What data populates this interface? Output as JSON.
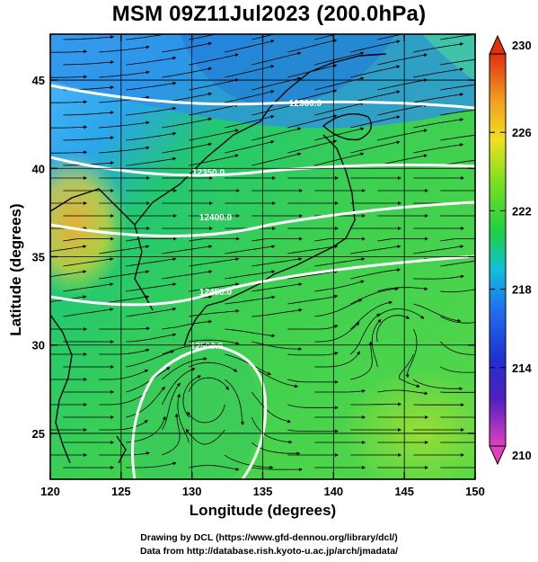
{
  "title": "MSM 09Z11Jul2023 (200.0hPa)",
  "chart_data": {
    "type": "heatmap",
    "title": "MSM 09Z11Jul2023 (200.0hPa)",
    "xlabel": "Longitude (degrees)",
    "ylabel": "Latitude  (degrees)",
    "xlim": [
      120,
      150
    ],
    "ylim": [
      22.4,
      47.6
    ],
    "xticks": [
      "120",
      "125",
      "130",
      "135",
      "140",
      "145",
      "150"
    ],
    "yticks": [
      "25",
      "30",
      "35",
      "40",
      "45"
    ],
    "xtick_values": [
      120,
      125,
      130,
      135,
      140,
      145,
      150
    ],
    "ytick_values": [
      25,
      30,
      35,
      40,
      45
    ],
    "grid": true,
    "field": "temperature (shaded), streamlines (arrows), geopotential height contours (white)",
    "colorbar": {
      "min": 210,
      "max": 230,
      "tick_labels": [
        "210",
        "214",
        "218",
        "222",
        "226",
        "230"
      ],
      "tick_values": [
        210,
        214,
        218,
        222,
        226,
        230
      ],
      "colors": [
        "#e040c0",
        "#2020c0",
        "#2060f0",
        "#10c8d8",
        "#20d040",
        "#80e020",
        "#f0e020",
        "#f0a020",
        "#e03010"
      ]
    },
    "contours": [
      {
        "label": "12300.0",
        "level": 12300
      },
      {
        "label": "12350.0",
        "level": 12350
      },
      {
        "label": "12400.0",
        "level": 12400
      },
      {
        "label": "12450.0",
        "level": 12450
      },
      {
        "label": "12500.0",
        "level": 12500
      }
    ]
  },
  "credits": {
    "line1": "Drawing by DCL (https://www.gfd-dennou.org/library/dcl/)",
    "line2": "Data from http://database.rish.kyoto-u.ac.jp/arch/jmadata/"
  }
}
